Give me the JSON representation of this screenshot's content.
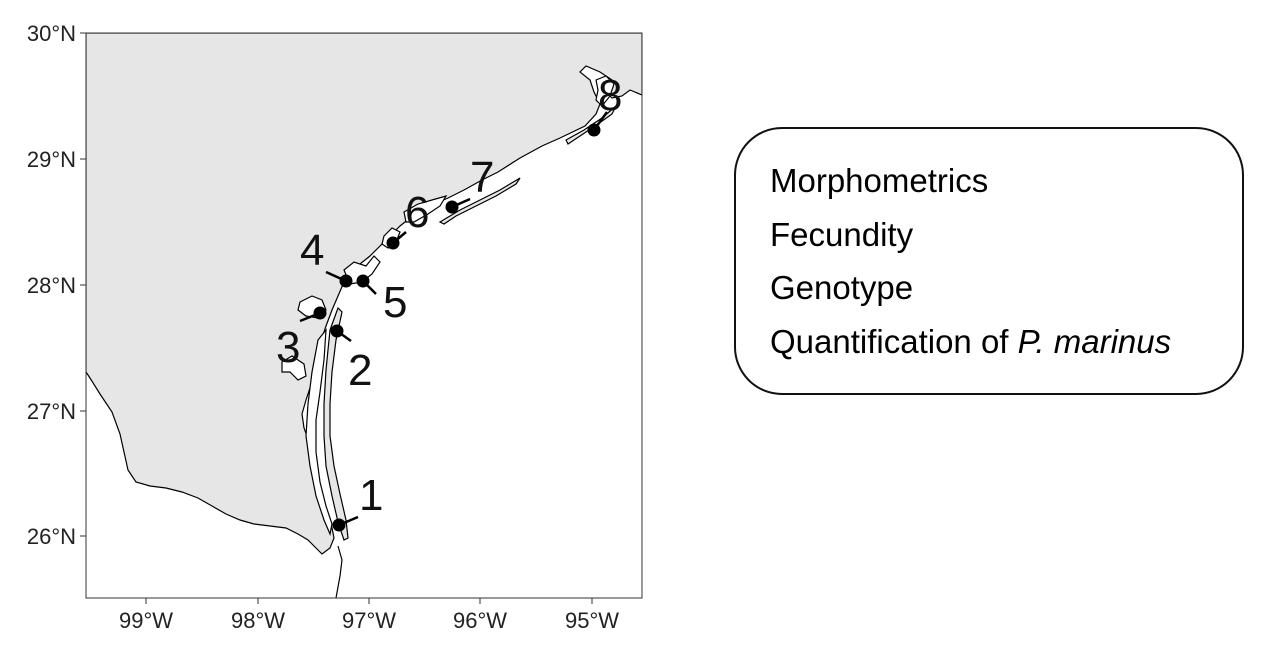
{
  "map": {
    "colors": {
      "land": "#e6e6e6",
      "water": "#ffffff",
      "coastline": "#000000",
      "site_marker": "#000000",
      "frame": "#333333"
    },
    "lat_ticks": [
      "30°N",
      "29°N",
      "28°N",
      "27°N",
      "26°N"
    ],
    "lon_ticks": [
      "99°W",
      "98°W",
      "97°W",
      "96°W",
      "95°W"
    ],
    "sites": [
      {
        "label": "1",
        "lon": -97.25,
        "lat": 26.08
      },
      {
        "label": "2",
        "lon": -97.27,
        "lat": 27.63
      },
      {
        "label": "3",
        "lon": -97.42,
        "lat": 27.77
      },
      {
        "label": "4",
        "lon": -97.16,
        "lat": 28.03
      },
      {
        "label": "5",
        "lon": -97.01,
        "lat": 28.03
      },
      {
        "label": "6",
        "lon": -96.75,
        "lat": 28.33
      },
      {
        "label": "7",
        "lon": -96.22,
        "lat": 28.62
      },
      {
        "label": "8",
        "lon": -94.93,
        "lat": 29.23
      }
    ]
  },
  "info_box": {
    "items": [
      {
        "text": "Morphometrics"
      },
      {
        "text": "Fecundity"
      },
      {
        "text": "Genotype"
      },
      {
        "text": "Quantification of ",
        "italic": "P. marinus"
      }
    ]
  }
}
